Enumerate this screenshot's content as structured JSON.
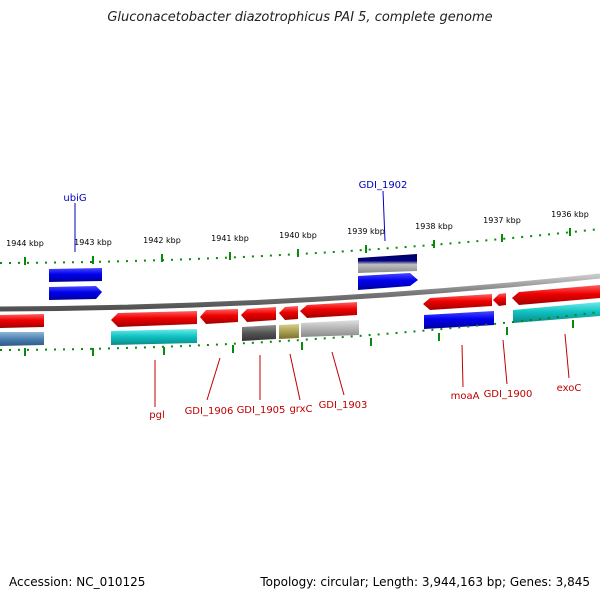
{
  "title": "Gluconacetobacter diazotrophicus PAI 5, complete genome",
  "footer": {
    "accession": "Accession: NC_010125",
    "summary": "Topology: circular; Length: 3,944,163 bp; Genes: 3,845"
  },
  "colors": {
    "forward_gene": "#0000e0",
    "reverse_gene": "#e00000",
    "reverse_teal": "#10c0c0",
    "label_forward": "#0000c0",
    "label_reverse": "#c00000",
    "backbone": "#808080",
    "tick": "#008000"
  },
  "ticks": [
    "1944 kbp",
    "1943 kbp",
    "1942 kbp",
    "1941 kbp",
    "1940 kbp",
    "1939 kbp",
    "1938 kbp",
    "1937 kbp",
    "1936 kbp"
  ],
  "gene_labels": {
    "forward": [
      "ubiG",
      "GDI_1902"
    ],
    "reverse": [
      "pgl",
      "GDI_1906",
      "GDI_1905",
      "grxC",
      "GDI_1903",
      "moaA",
      "GDI_1900",
      "exoC"
    ]
  }
}
